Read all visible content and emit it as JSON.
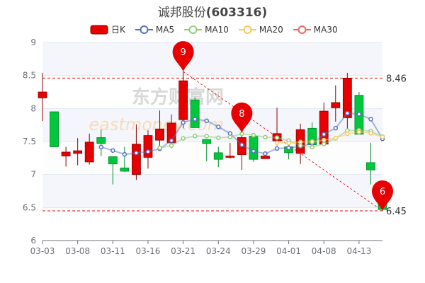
{
  "title": {
    "name": "诚邦股份",
    "code": "(603316)"
  },
  "legend": [
    {
      "label": "日K",
      "color": "#e60000",
      "type": "candle"
    },
    {
      "label": "MA5",
      "color": "#5470c6",
      "type": "line"
    },
    {
      "label": "MA10",
      "color": "#91cc75",
      "type": "line"
    },
    {
      "label": "MA20",
      "color": "#fac858",
      "type": "line"
    },
    {
      "label": "MA30",
      "color": "#ee6666",
      "type": "line"
    }
  ],
  "watermark": "东方财富网 eastmoney.com",
  "chart_data": {
    "type": "candlestick",
    "ylim": [
      6,
      9
    ],
    "y_ticks": [
      "9",
      "8.5",
      "8",
      "7.5",
      "7",
      "6.5",
      "6"
    ],
    "x_ticks": [
      {
        "index": 0,
        "label": "03-03"
      },
      {
        "index": 3,
        "label": "03-08"
      },
      {
        "index": 6,
        "label": "03-11"
      },
      {
        "index": 9,
        "label": "03-16"
      },
      {
        "index": 12,
        "label": "03-21"
      },
      {
        "index": 15,
        "label": "03-24"
      },
      {
        "index": 18,
        "label": "03-29"
      },
      {
        "index": 21,
        "label": "04-01"
      },
      {
        "index": 24,
        "label": "04-08"
      },
      {
        "index": 27,
        "label": "04-13"
      }
    ],
    "up_color": "#e60000",
    "down_color": "#00c73c",
    "ohlc": [
      [
        8.16,
        8.25,
        8.54,
        7.81
      ],
      [
        7.95,
        7.42,
        7.95,
        7.42
      ],
      [
        7.28,
        7.34,
        7.42,
        7.12
      ],
      [
        7.32,
        7.36,
        7.55,
        7.14
      ],
      [
        7.19,
        7.49,
        7.62,
        7.15
      ],
      [
        7.56,
        7.47,
        7.68,
        7.28
      ],
      [
        7.27,
        7.16,
        7.27,
        6.85
      ],
      [
        7.1,
        7.05,
        7.42,
        7.04
      ],
      [
        7.0,
        7.46,
        7.76,
        6.92
      ],
      [
        7.26,
        7.59,
        7.67,
        7.09
      ],
      [
        7.52,
        7.69,
        7.97,
        7.43
      ],
      [
        7.48,
        7.78,
        7.91,
        7.4
      ],
      [
        7.83,
        8.42,
        8.56,
        7.7
      ],
      [
        8.13,
        7.71,
        8.17,
        7.71
      ],
      [
        7.53,
        7.47,
        7.53,
        7.2
      ],
      [
        7.33,
        7.23,
        7.42,
        7.11
      ],
      [
        7.26,
        7.28,
        7.48,
        7.24
      ],
      [
        7.3,
        7.56,
        7.63,
        7.07
      ],
      [
        7.58,
        7.23,
        7.6,
        7.19
      ],
      [
        7.24,
        7.28,
        7.29,
        7.24
      ],
      [
        7.51,
        7.62,
        8.01,
        7.44
      ],
      [
        7.42,
        7.33,
        7.53,
        7.23
      ],
      [
        7.32,
        7.68,
        7.77,
        7.16
      ],
      [
        7.7,
        7.45,
        7.79,
        7.45
      ],
      [
        7.46,
        7.96,
        8.09,
        7.46
      ],
      [
        8.01,
        8.09,
        8.35,
        7.8
      ],
      [
        7.86,
        8.46,
        8.54,
        7.69
      ],
      [
        8.2,
        7.61,
        8.25,
        7.61
      ],
      [
        7.18,
        7.07,
        7.48,
        6.85
      ],
      [
        6.61,
        6.47,
        6.91,
        6.45
      ]
    ],
    "ma_windows": {
      "MA5": 5,
      "MA10": 10,
      "MA20": 20,
      "MA30": 30
    },
    "markers": [
      {
        "label": "9",
        "index": 12,
        "value": 8.56
      },
      {
        "label": "8",
        "index": 17,
        "value": 7.63
      },
      {
        "label": "6",
        "index": 29,
        "value": 6.45
      }
    ],
    "reference_lines": [
      {
        "label": "8.46",
        "value": 8.46
      },
      {
        "label": "6.45",
        "value": 6.45
      }
    ],
    "trend_line": {
      "from_index": 12,
      "from_value": 8.56,
      "to_index": 29,
      "to_value": 6.45
    }
  }
}
